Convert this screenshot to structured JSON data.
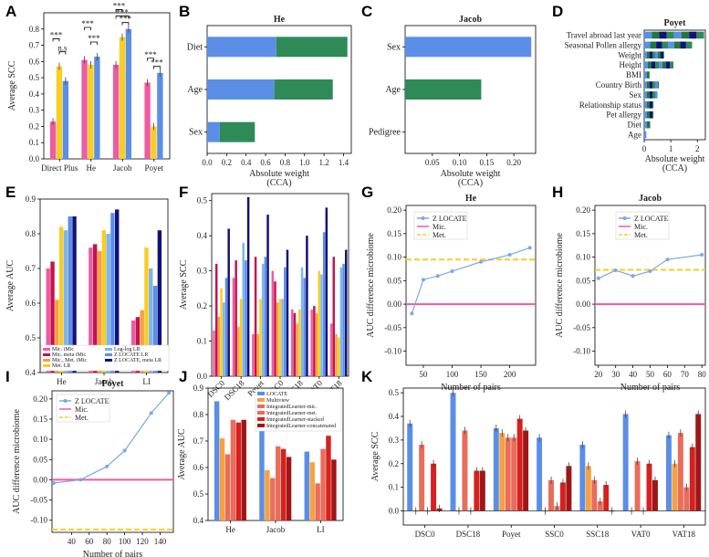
{
  "colors": {
    "pink": "#ef5ba1",
    "gold": "#f7ce21",
    "yellow": "#f2e84d",
    "blue": "#5b8ee6",
    "navy": "#11117a",
    "green": "#2e8b57",
    "orange": "#f5a142",
    "salmon": "#e86d5a",
    "red": "#d8201e",
    "darkred": "#9e1616",
    "sky": "#7fb5e8",
    "maroon": "#c4134f",
    "dkgreen": "#1f7a3a"
  },
  "chart_data": [
    {
      "id": "A",
      "type": "bar",
      "title": "",
      "xlabel": "",
      "ylabel": "Average SCC",
      "ylim": [
        0,
        0.9
      ],
      "yticks": [
        0.0,
        0.1,
        0.2,
        0.3,
        0.4,
        0.5,
        0.6,
        0.7,
        0.8
      ],
      "categories": [
        "Direct Plus",
        "He",
        "Jacob",
        "Poyet"
      ],
      "series": [
        {
          "name": "Mic.",
          "color": "pink",
          "values": [
            0.23,
            0.61,
            0.58,
            0.47
          ]
        },
        {
          "name": "Met.",
          "color": "gold",
          "values": [
            0.57,
            0.58,
            0.75,
            0.2
          ]
        },
        {
          "name": "Z LOCATE",
          "color": "blue",
          "values": [
            0.48,
            0.63,
            0.8,
            0.53
          ]
        }
      ],
      "annotations": [
        "***",
        "n.s",
        "***",
        "***",
        "***",
        "***",
        "***",
        "***",
        "***",
        "***",
        "***",
        "***"
      ]
    },
    {
      "id": "B",
      "type": "stacked_barh",
      "title": "He",
      "xlabel": "Absolute weight\n(CCA)",
      "xlim": [
        0,
        1.48
      ],
      "xticks": [
        0.0,
        0.2,
        0.4,
        0.6,
        0.8,
        1.0,
        1.2,
        1.4
      ],
      "categories": [
        "Diet",
        "Age",
        "Sex"
      ],
      "series": [
        {
          "name": "Mic.",
          "color": "blue",
          "values": [
            0.71,
            0.69,
            0.13
          ]
        },
        {
          "name": "Met.",
          "color": "green",
          "values": [
            0.73,
            0.6,
            0.36
          ]
        }
      ]
    },
    {
      "id": "C",
      "type": "stacked_barh",
      "title": "Jacob",
      "xlabel": "Absolute weight\n(CCA)",
      "xlim": [
        0,
        0.24
      ],
      "xticks": [
        0.05,
        0.1,
        0.15,
        0.2
      ],
      "categories": [
        "Sex",
        "Age",
        "Pedigree"
      ],
      "series": [
        {
          "name": "Mic.",
          "color": "blue",
          "values": [
            0.232,
            0.0,
            0.0
          ]
        },
        {
          "name": "Met.",
          "color": "green",
          "values": [
            0.0,
            0.14,
            0.0
          ]
        }
      ]
    },
    {
      "id": "D",
      "type": "stacked_barh",
      "title": "Poyet",
      "xlabel": "Absolute weight\n(CCA)",
      "xlim": [
        0,
        2.3
      ],
      "xticks": [
        0,
        1,
        2
      ],
      "categories": [
        "Travel abroad last year",
        "Seasonal Pollen allergy",
        "Weight",
        "Height",
        "BMI",
        "Country Birth",
        "Sex",
        "Relationship status",
        "Pet allergy",
        "Diet",
        "Age"
      ],
      "values": [
        2.25,
        1.8,
        0.75,
        1.1,
        0.2,
        0.55,
        0.5,
        0.35,
        0.35,
        0.22,
        0.08
      ]
    },
    {
      "id": "E",
      "type": "bar",
      "title": "",
      "xlabel": "",
      "ylabel": "Average AUC",
      "ylim": [
        0.4,
        0.9
      ],
      "yticks": [
        0.4,
        0.5,
        0.6,
        0.7,
        0.8,
        0.9
      ],
      "categories": [
        "He",
        "Jacob",
        "LI"
      ],
      "series": [
        {
          "name": "Mic. iMic",
          "color": "pink",
          "values": [
            0.7,
            0.76,
            0.55
          ]
        },
        {
          "name": "Mic. meta iMic",
          "color": "maroon",
          "values": [
            0.72,
            0.77,
            0.56
          ]
        },
        {
          "name": "Mic., Met. iMic",
          "color": "orange",
          "values": [
            0.61,
            0.75,
            0.58
          ]
        },
        {
          "name": "Met. LR",
          "color": "gold",
          "values": [
            0.82,
            0.81,
            0.76
          ]
        },
        {
          "name": "Log-log LR",
          "color": "sky",
          "values": [
            0.81,
            0.8,
            0.7
          ]
        },
        {
          "name": "Z LOCATE LR",
          "color": "blue",
          "values": [
            0.85,
            0.86,
            0.65
          ]
        },
        {
          "name": "Z LOCATE, meta LR",
          "color": "navy",
          "values": [
            0.85,
            0.87,
            0.81
          ]
        }
      ]
    },
    {
      "id": "F",
      "type": "bar",
      "title": "",
      "xlabel": "",
      "ylabel": "Average SCC",
      "ylim": [
        0,
        0.52
      ],
      "yticks": [
        0.0,
        0.1,
        0.2,
        0.3,
        0.4,
        0.5
      ],
      "categories": [
        "DSC0",
        "DSC18",
        "Poyet",
        "SSC0",
        "SSC18",
        "VAT0",
        "VAT18"
      ],
      "series": [
        {
          "name": "Mic. iMic",
          "color": "pink",
          "values": [
            0.13,
            0.28,
            0.12,
            0.3,
            0.19,
            0.19,
            0.15
          ]
        },
        {
          "name": "Mic. meta iMic",
          "color": "maroon",
          "values": [
            0.32,
            0.33,
            0.34,
            0.27,
            0.18,
            0.2,
            0.34
          ]
        },
        {
          "name": "Mic., Met. iMic",
          "color": "orange",
          "values": [
            0.17,
            0.14,
            0.12,
            0.21,
            0.15,
            0.18,
            0.12
          ]
        },
        {
          "name": "Met. LR",
          "color": "gold",
          "values": [
            0.25,
            0.22,
            0.22,
            0.22,
            0.19,
            0.3,
            0.11
          ]
        },
        {
          "name": "Log-log LR",
          "color": "sky",
          "values": [
            0.21,
            0.38,
            0.32,
            0.22,
            0.31,
            0.29,
            0.31
          ]
        },
        {
          "name": "Z LOCATE LR",
          "color": "blue",
          "values": [
            0.28,
            0.33,
            0.34,
            0.31,
            0.28,
            0.41,
            0.32
          ]
        },
        {
          "name": "Z LOCATE, meta LR",
          "color": "navy",
          "values": [
            0.42,
            0.51,
            0.46,
            0.36,
            0.4,
            0.48,
            0.36
          ]
        }
      ]
    },
    {
      "id": "G",
      "type": "line",
      "title": "He",
      "xlabel": "Number of pairs",
      "ylabel": "AUC difference microbiome",
      "xlim": [
        20,
        245
      ],
      "ylim": [
        -0.13,
        0.21
      ],
      "xticks": [
        50,
        100,
        150,
        200
      ],
      "yticks": [
        -0.1,
        -0.05,
        0.0,
        0.05,
        0.1,
        0.15,
        0.2
      ],
      "series": [
        {
          "name": "Z LOCATE",
          "x": [
            30,
            50,
            75,
            100,
            150,
            200,
            235
          ],
          "y": [
            -0.02,
            0.052,
            0.06,
            0.07,
            0.09,
            0.105,
            0.12
          ]
        }
      ],
      "hlines": [
        {
          "name": "Mic.",
          "y": 0.0,
          "color": "pink"
        },
        {
          "name": "Met.",
          "y": 0.095,
          "color": "gold"
        }
      ],
      "legend": [
        "Z LOCATE",
        "Mic.",
        "Met."
      ]
    },
    {
      "id": "H",
      "type": "line",
      "title": "Jacob",
      "xlabel": "Number of pairs",
      "ylabel": "AUC difference microbiome",
      "xlim": [
        18,
        82
      ],
      "ylim": [
        -0.13,
        0.21
      ],
      "xticks": [
        20,
        30,
        40,
        50,
        60,
        70,
        80
      ],
      "yticks": [
        -0.1,
        -0.05,
        0.0,
        0.05,
        0.1,
        0.15,
        0.2
      ],
      "series": [
        {
          "name": "Z LOCATE",
          "x": [
            20,
            30,
            40,
            50,
            60,
            80
          ],
          "y": [
            0.055,
            0.072,
            0.06,
            0.07,
            0.095,
            0.105
          ]
        }
      ],
      "hlines": [
        {
          "name": "Mic.",
          "y": 0.0,
          "color": "pink"
        },
        {
          "name": "Met.",
          "y": 0.073,
          "color": "gold"
        }
      ],
      "legend": [
        "Z LOCATE",
        "Mic.",
        "Met."
      ]
    },
    {
      "id": "I",
      "type": "line",
      "title": "Poyet",
      "xlabel": "Number of pairs",
      "ylabel": "AUC difference microbiome",
      "xlim": [
        18,
        155
      ],
      "ylim": [
        -0.13,
        0.22
      ],
      "xticks": [
        40,
        60,
        80,
        100,
        120,
        140
      ],
      "yticks": [
        -0.1,
        -0.05,
        0.0,
        0.05,
        0.1,
        0.15,
        0.2
      ],
      "series": [
        {
          "name": "Z LOCATE",
          "x": [
            20,
            50,
            80,
            100,
            130,
            150
          ],
          "y": [
            -0.008,
            0.0,
            0.033,
            0.072,
            0.165,
            0.215
          ]
        }
      ],
      "hlines": [
        {
          "name": "Mic.",
          "y": 0.0,
          "color": "pink"
        },
        {
          "name": "Met.",
          "y": -0.123,
          "color": "gold"
        }
      ],
      "legend": [
        "Z LOCATE",
        "Mic.",
        "Met."
      ]
    },
    {
      "id": "J",
      "type": "bar",
      "title": "",
      "xlabel": "",
      "ylabel": "Average AUC",
      "ylim": [
        0.4,
        0.9
      ],
      "yticks": [
        0.4,
        0.5,
        0.6,
        0.7,
        0.8,
        0.9
      ],
      "categories": [
        "He",
        "Jacob",
        "LI"
      ],
      "series": [
        {
          "name": "LOCATE",
          "color": "blue",
          "values": [
            0.85,
            0.85,
            0.66
          ]
        },
        {
          "name": "Multiview",
          "color": "orange",
          "values": [
            0.71,
            0.59,
            0.62
          ]
        },
        {
          "name": "IntegratedLearner-mic.",
          "color": "salmon",
          "values": [
            0.65,
            0.56,
            0.54
          ]
        },
        {
          "name": "IntegratedLearner-met.",
          "color": "salmon",
          "values": [
            0.78,
            0.68,
            0.67
          ]
        },
        {
          "name": "IntegratedLearner-stacked",
          "color": "red",
          "values": [
            0.77,
            0.67,
            0.72
          ]
        },
        {
          "name": "IntegratedLearner-concatenated",
          "color": "darkred",
          "values": [
            0.78,
            0.64,
            0.63
          ]
        }
      ]
    },
    {
      "id": "K",
      "type": "bar",
      "title": "",
      "xlabel": "",
      "ylabel": "Average SCC",
      "ylim": [
        -0.06,
        0.52
      ],
      "yticks": [
        0.0,
        0.1,
        0.2,
        0.3,
        0.4,
        0.5
      ],
      "categories": [
        "DSC0",
        "DSC18",
        "Poyet",
        "SSC0",
        "SSC18",
        "VAT0",
        "VAT18"
      ],
      "series": [
        {
          "name": "LOCATE",
          "color": "blue",
          "values": [
            0.37,
            0.5,
            0.35,
            0.31,
            0.28,
            0.41,
            0.32
          ]
        },
        {
          "name": "Multiview",
          "color": "orange",
          "values": [
            -0.01,
            -0.04,
            0.33,
            0.0,
            0.19,
            0.0,
            0.2
          ]
        },
        {
          "name": "IntegratedLearner-mic.",
          "color": "salmon",
          "values": [
            0.28,
            0.34,
            0.31,
            0.13,
            0.13,
            0.21,
            0.33
          ]
        },
        {
          "name": "IntegratedLearner-met.",
          "color": "salmon",
          "values": [
            0.0,
            0.0,
            0.31,
            0.02,
            0.04,
            0.0,
            0.1
          ]
        },
        {
          "name": "IntegratedLearner-stacked",
          "color": "red",
          "values": [
            0.2,
            0.17,
            0.39,
            0.12,
            0.11,
            0.2,
            0.27
          ]
        },
        {
          "name": "IntegratedLearner-concatenated",
          "color": "darkred",
          "values": [
            0.01,
            0.17,
            0.34,
            0.19,
            0.0,
            0.13,
            0.41
          ]
        }
      ]
    }
  ],
  "legend_labels": {
    "E": [
      "Mic. iMic",
      "Mic. meta iMic",
      "Mic., Met. iMic",
      "Met. LR",
      "Log-log LR",
      "Z LOCATE LR",
      "Z LOCATE, meta LR"
    ],
    "J": [
      "LOCATE",
      "Multiview",
      "IntegratedLearner-mic.",
      "IntegratedLearner-met.",
      "IntegratedLearner-stacked",
      "IntegratedLearner-concatenated"
    ]
  }
}
